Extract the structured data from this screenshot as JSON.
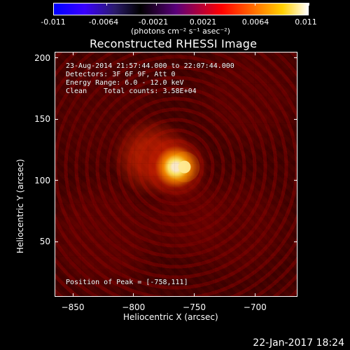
{
  "chart_data": {
    "type": "heatmap",
    "title": "Reconstructed RHESSI Image",
    "xlabel": "Heliocentric X (arcsec)",
    "ylabel": "Heliocentric Y (arcsec)",
    "xlim": [
      -865,
      -665
    ],
    "ylim": [
      5,
      205
    ],
    "x_ticks": [
      -850,
      -800,
      -750,
      -700
    ],
    "y_ticks": [
      50,
      100,
      150,
      200
    ],
    "colorbar": {
      "min": -0.011,
      "max": 0.011,
      "ticks": [
        -0.011,
        -0.0064,
        -0.0021,
        0.0021,
        0.0064,
        0.011
      ],
      "tick_labels": [
        "-0.011",
        "-0.0064",
        "-0.0021",
        "0.0021",
        "0.0064",
        "0.011"
      ],
      "unit": "(photons cm⁻² s⁻¹ asec⁻²)"
    },
    "annotations": [
      "23-Aug-2014 21:57:44.000 to 22:07:44.000",
      "Detectors: 3F 6F 9F, Att 0",
      "Energy Range: 6.0 - 12.0 keV",
      "Clean    Total counts: 3.58E+04",
      "Position of Peak = [-758,111]"
    ],
    "peak": {
      "x": -758,
      "y": 111
    },
    "grid": "off",
    "legend_placement": "none"
  },
  "footer": {
    "date_stamp": "22-Jan-2017 18:24"
  }
}
